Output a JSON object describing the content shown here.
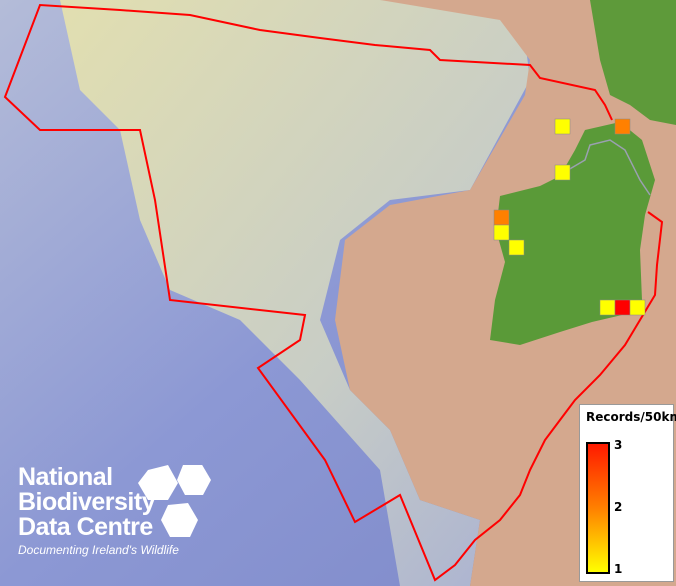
{
  "legend": {
    "title": "Records/50km",
    "max_label": "3",
    "mid_label": "2",
    "min_label": "1",
    "colors": [
      "#ffff00",
      "#ff8000",
      "#ff0000"
    ]
  },
  "records": [
    1,
    2,
    1,
    2,
    1,
    1,
    1,
    3,
    1
  ],
  "boundary_color": "#ff0000",
  "logo": {
    "line1": "National",
    "line2": "Biodiversity",
    "line3": "Data Centre",
    "tagline": "Documenting Ireland's Wildlife"
  }
}
